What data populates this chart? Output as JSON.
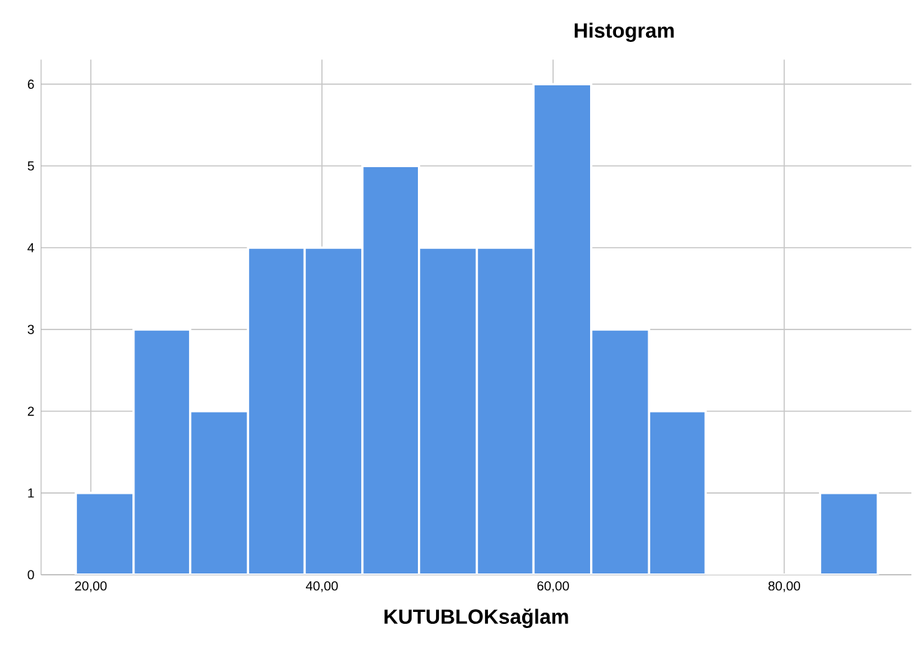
{
  "chart_data": {
    "type": "histogram",
    "title": "Histogram",
    "xlabel": "KUTUBLOKsağlam",
    "bins": [
      18.7,
      23.7,
      28.6,
      33.6,
      38.5,
      43.5,
      48.4,
      53.4,
      58.3,
      63.3,
      68.3,
      73.2,
      83.1,
      88.1
    ],
    "values": [
      1,
      3,
      2,
      4,
      4,
      5,
      4,
      4,
      6,
      3,
      2,
      0,
      1
    ],
    "color": "#5594e4",
    "xlim": [
      15.7,
      91
    ],
    "ylim": [
      0,
      6.3
    ],
    "xticks": [
      {
        "value": 20,
        "label": "20,00"
      },
      {
        "value": 40,
        "label": "40,00"
      },
      {
        "value": 60,
        "label": "60,00"
      },
      {
        "value": 80,
        "label": "80,00"
      }
    ],
    "yticks": [
      0,
      1,
      2,
      3,
      4,
      5,
      6
    ],
    "grid": true
  }
}
